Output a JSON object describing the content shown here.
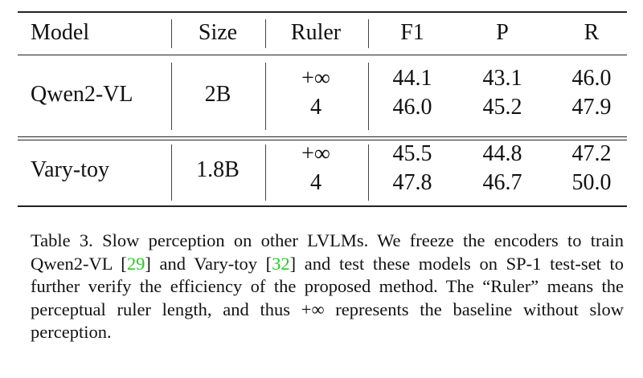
{
  "table": {
    "headers": [
      "Model",
      "Size",
      "Ruler",
      "F1",
      "P",
      "R"
    ],
    "groups": [
      {
        "model": "Qwen2-VL",
        "size": "2B",
        "rows": [
          {
            "ruler": "+∞",
            "f1": "44.1",
            "p": "43.1",
            "r": "46.0"
          },
          {
            "ruler": "4",
            "f1": "46.0",
            "p": "45.2",
            "r": "47.9"
          }
        ]
      },
      {
        "model": "Vary-toy",
        "size": "1.8B",
        "rows": [
          {
            "ruler": "+∞",
            "f1": "45.5",
            "p": "44.8",
            "r": "47.2"
          },
          {
            "ruler": "4",
            "f1": "47.8",
            "p": "46.7",
            "r": "50.0"
          }
        ]
      }
    ]
  },
  "caption": {
    "part1": "Table 3. Slow perception on other LVLMs. We freeze the encoders to train Qwen2-VL [",
    "cite1": "29",
    "part2": "] and Vary-toy [",
    "cite2": "32",
    "part3": "] and test these models on SP-1 test-set to further verify the efficiency of the proposed method. The “Ruler” means the perceptual ruler length, and thus +∞ represents the baseline without slow perception.",
    "cite_color": "#22cc22"
  }
}
